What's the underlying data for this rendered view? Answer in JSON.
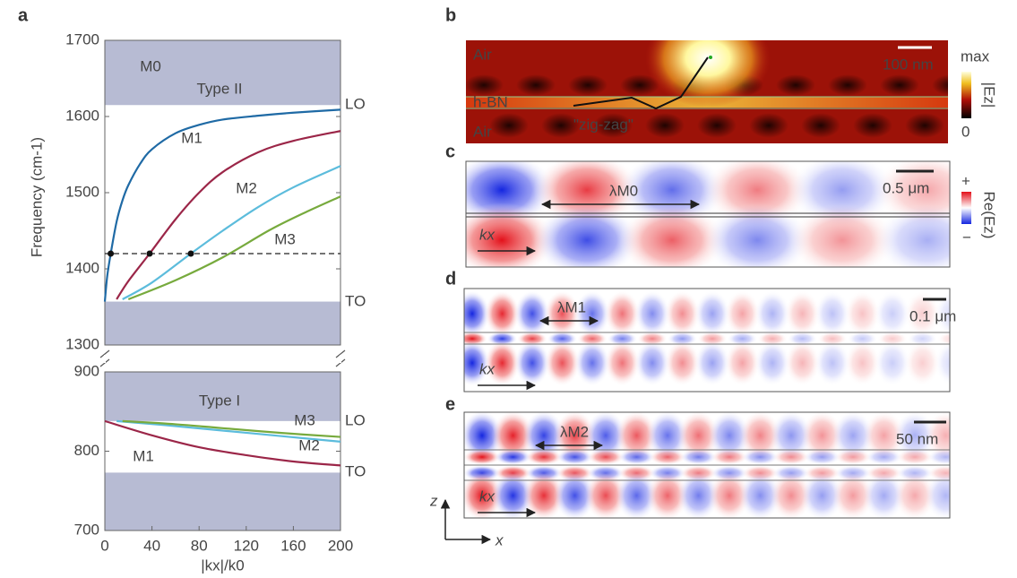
{
  "panel_labels": [
    "a",
    "b",
    "c",
    "d",
    "e"
  ],
  "chart_data": [
    {
      "type": "line",
      "ylabel": "Frequency (cm-1)",
      "xlim": [
        0,
        200
      ],
      "ylim": [
        1300,
        1700
      ],
      "yticks": [
        1300,
        1400,
        1500,
        1600,
        1700
      ],
      "bands": [
        [
          1615,
          1700
        ],
        [
          1300,
          1357
        ]
      ],
      "band_color": "#b7bbd3",
      "annotations": [
        "Type II",
        "LO",
        "TO"
      ],
      "reference_line": 1420,
      "points": {
        "x": [
          5,
          38,
          73
        ],
        "values": [
          1420,
          1420,
          1420
        ]
      },
      "series": [
        {
          "name": "M0",
          "color": "#1f6aa5",
          "x": [
            0,
            2,
            5,
            10,
            15,
            20,
            30,
            40,
            60,
            80,
            100,
            130,
            160,
            200
          ],
          "values": [
            1357,
            1390,
            1420,
            1462,
            1490,
            1510,
            1538,
            1557,
            1578,
            1589,
            1596,
            1601,
            1605,
            1609
          ]
        },
        {
          "name": "M1",
          "color": "#9b2648",
          "x": [
            10,
            20,
            38,
            60,
            80,
            100,
            130,
            160,
            200
          ],
          "values": [
            1360,
            1384,
            1420,
            1465,
            1500,
            1527,
            1553,
            1568,
            1581
          ]
        },
        {
          "name": "M2",
          "color": "#5cbcdc",
          "x": [
            15,
            40,
            73,
            100,
            130,
            160,
            200
          ],
          "values": [
            1360,
            1382,
            1420,
            1450,
            1481,
            1507,
            1535
          ]
        },
        {
          "name": "M3",
          "color": "#77aa3d",
          "x": [
            20,
            60,
            100,
            140,
            170,
            200
          ],
          "values": [
            1360,
            1385,
            1415,
            1451,
            1474,
            1495
          ]
        }
      ]
    },
    {
      "type": "line",
      "xlabel": "|kx|/k0",
      "xlim": [
        0,
        200
      ],
      "xticks": [
        0,
        40,
        80,
        120,
        160,
        200
      ],
      "ylim": [
        700,
        900
      ],
      "yticks": [
        700,
        800,
        900
      ],
      "bands": [
        [
          838,
          900
        ],
        [
          700,
          773
        ]
      ],
      "band_color": "#b7bbd3",
      "annotations": [
        "Type I",
        "LO",
        "TO"
      ],
      "series": [
        {
          "name": "M1",
          "color": "#9b2648",
          "x": [
            0,
            40,
            80,
            120,
            160,
            200
          ],
          "values": [
            838,
            820,
            805,
            795,
            787,
            782
          ]
        },
        {
          "name": "M2",
          "color": "#5cbcdc",
          "x": [
            10,
            50,
            100,
            150,
            200
          ],
          "values": [
            838,
            833,
            826,
            819,
            812
          ]
        },
        {
          "name": "M3",
          "color": "#77aa3d",
          "x": [
            15,
            60,
            100,
            150,
            200
          ],
          "values": [
            838,
            834,
            829,
            823,
            818
          ]
        }
      ]
    }
  ],
  "panels": {
    "b": {
      "air_top": "Air",
      "hbn": "h-BN",
      "air_bottom": "Air",
      "scale": "100 nm",
      "zigzag": "\"zig-zag\"",
      "cbar_max": "max",
      "cbar_label": "|Ez|",
      "cbar_min": "0"
    },
    "c": {
      "lambda": "λM0",
      "scale": "0.5 μm",
      "k": "kx",
      "cbar_max": "+",
      "cbar_label": "Re(Ez)",
      "cbar_min": "−"
    },
    "d": {
      "lambda": "λM1",
      "scale": "0.1 μm",
      "k": "kx"
    },
    "e": {
      "lambda": "λM2",
      "scale": "50 nm",
      "k": "kx"
    }
  },
  "axes_indicator": {
    "z": "z",
    "x": "x"
  }
}
